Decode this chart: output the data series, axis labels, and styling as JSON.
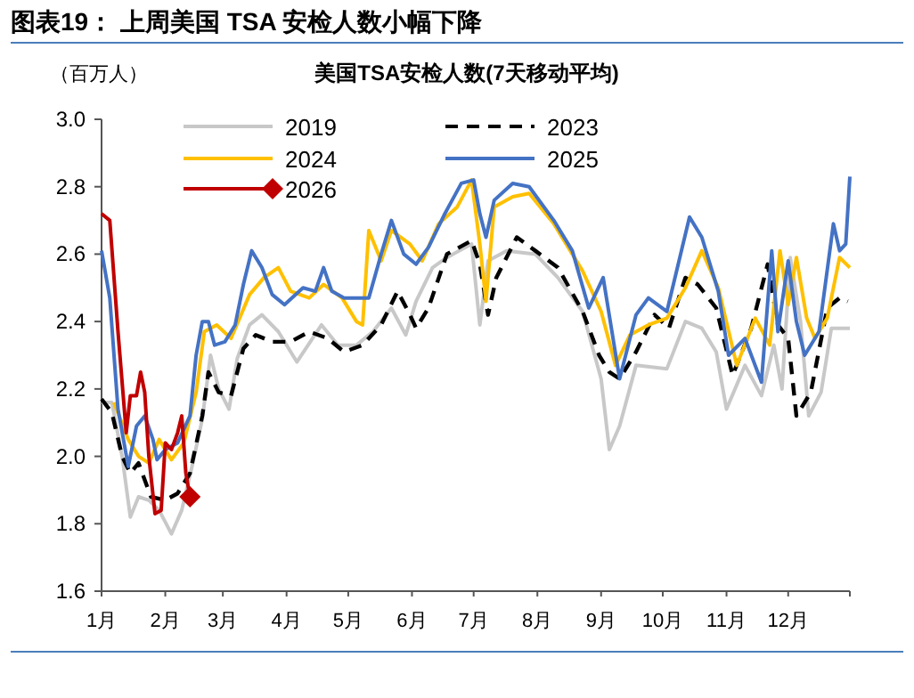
{
  "chart_data": {
    "type": "line",
    "title": "图表19：  上周美国 TSA 安检人数小幅下降",
    "subtitle": "美国TSA安检人数(7天移动平均)",
    "ylabel": "（百万人）",
    "xlim": [
      "--01-01",
      "--12-31"
    ],
    "xticks": [
      {
        "value": "--01-01",
        "label": "1月"
      },
      {
        "value": "--02-01",
        "label": "2月"
      },
      {
        "value": "--03-01",
        "label": "3月"
      },
      {
        "value": "--04-01",
        "label": "4月"
      },
      {
        "value": "--05-01",
        "label": "5月"
      },
      {
        "value": "--06-01",
        "label": "6月"
      },
      {
        "value": "--07-01",
        "label": "7月"
      },
      {
        "value": "--08-01",
        "label": "8月"
      },
      {
        "value": "--09-01",
        "label": "9月"
      },
      {
        "value": "--10-01",
        "label": "10月"
      },
      {
        "value": "--11-01",
        "label": "11月"
      },
      {
        "value": "--12-01",
        "label": "12月"
      },
      {
        "value": "--12-31",
        "label": null
      }
    ],
    "ylim": [
      1.6,
      3.0
    ],
    "yticks": [
      {
        "value": 1.6,
        "label": "1.6"
      },
      {
        "value": 1.8,
        "label": "1.8"
      },
      {
        "value": 2.0,
        "label": "2.0"
      },
      {
        "value": 2.2,
        "label": "2.2"
      },
      {
        "value": 2.4,
        "label": "2.4"
      },
      {
        "value": 2.6,
        "label": "2.6"
      },
      {
        "value": 2.8,
        "label": "2.8"
      },
      {
        "value": 3.0,
        "label": "3.0"
      }
    ],
    "grid": false,
    "legend": "top",
    "series": [
      {
        "name": "2019",
        "color": "#c8c8c8",
        "line_style": "solid",
        "x": [
          "--01-01",
          "--01-06",
          "--01-11",
          "--01-15",
          "--01-19",
          "--01-24",
          "--01-29",
          "--02-04",
          "--02-09",
          "--02-14",
          "--02-19",
          "--02-23",
          "--02-27",
          "--03-04",
          "--03-08",
          "--03-14",
          "--03-20",
          "--03-28",
          "--04-06",
          "--04-18",
          "--04-26",
          "--05-05",
          "--05-13",
          "--05-22",
          "--05-29",
          "--06-03",
          "--06-11",
          "--06-18",
          "--06-30",
          "--07-04",
          "--07-08",
          "--07-17",
          "--07-31",
          "--08-11",
          "--08-23",
          "--09-01",
          "--09-05",
          "--09-10",
          "--09-18",
          "--10-03",
          "--10-12",
          "--10-20",
          "--10-27",
          "--11-01",
          "--11-10",
          "--11-18",
          "--11-24",
          "--11-28",
          "--12-02",
          "--12-07",
          "--12-11",
          "--12-17",
          "--12-22",
          "--12-31"
        ],
        "values": [
          2.16,
          2.16,
          2.0,
          1.82,
          1.88,
          1.87,
          1.84,
          1.77,
          1.84,
          1.97,
          2.11,
          2.3,
          2.2,
          2.14,
          2.29,
          2.39,
          2.42,
          2.37,
          2.28,
          2.39,
          2.33,
          2.33,
          2.37,
          2.44,
          2.36,
          2.46,
          2.56,
          2.59,
          2.63,
          2.39,
          2.58,
          2.61,
          2.6,
          2.53,
          2.43,
          2.23,
          2.02,
          2.09,
          2.27,
          2.26,
          2.4,
          2.38,
          2.31,
          2.14,
          2.27,
          2.18,
          2.33,
          2.2,
          2.59,
          2.4,
          2.12,
          2.19,
          2.38,
          2.38
        ]
      },
      {
        "name": "2023",
        "color": "#000000",
        "line_style": "dashed",
        "x": [
          "--01-01",
          "--01-06",
          "--01-11",
          "--01-15",
          "--01-19",
          "--01-25",
          "--02-01",
          "--02-07",
          "--02-13",
          "--02-19",
          "--02-22",
          "--02-27",
          "--03-05",
          "--03-11",
          "--03-17",
          "--03-25",
          "--04-03",
          "--04-12",
          "--04-21",
          "--04-29",
          "--05-08",
          "--05-17",
          "--05-25",
          "--05-31",
          "--06-03",
          "--06-09",
          "--06-18",
          "--06-30",
          "--07-04",
          "--07-08",
          "--07-12",
          "--07-22",
          "--07-31",
          "--08-11",
          "--08-23",
          "--08-31",
          "--09-05",
          "--09-10",
          "--09-18",
          "--09-27",
          "--10-04",
          "--10-12",
          "--10-18",
          "--10-27",
          "--11-04",
          "--11-13",
          "--11-21",
          "--11-26",
          "--12-01",
          "--12-05",
          "--12-12",
          "--12-20",
          "--12-26",
          "--12-30"
        ],
        "values": [
          2.17,
          2.13,
          2.0,
          1.95,
          1.98,
          1.88,
          1.87,
          1.89,
          1.95,
          2.12,
          2.25,
          2.19,
          2.18,
          2.32,
          2.36,
          2.34,
          2.34,
          2.37,
          2.35,
          2.31,
          2.33,
          2.39,
          2.49,
          2.42,
          2.38,
          2.44,
          2.6,
          2.64,
          2.57,
          2.42,
          2.53,
          2.65,
          2.61,
          2.56,
          2.43,
          2.3,
          2.25,
          2.23,
          2.31,
          2.42,
          2.38,
          2.53,
          2.51,
          2.44,
          2.24,
          2.38,
          2.57,
          2.39,
          2.35,
          2.12,
          2.19,
          2.44,
          2.47,
          2.46
        ]
      },
      {
        "name": "2024",
        "color": "#ffc000",
        "line_style": "solid",
        "x": [
          "--01-07",
          "--01-14",
          "--01-19",
          "--01-24",
          "--01-29",
          "--02-04",
          "--02-10",
          "--02-16",
          "--02-20",
          "--02-26",
          "--03-05",
          "--03-14",
          "--03-21",
          "--03-28",
          "--04-03",
          "--04-12",
          "--04-19",
          "--04-28",
          "--05-05",
          "--05-08",
          "--05-11",
          "--05-17",
          "--05-22",
          "--05-31",
          "--06-06",
          "--06-14",
          "--06-23",
          "--06-30",
          "--07-04",
          "--07-07",
          "--07-11",
          "--07-20",
          "--07-28",
          "--08-09",
          "--08-23",
          "--09-01",
          "--09-08",
          "--09-15",
          "--09-24",
          "--10-03",
          "--10-12",
          "--10-20",
          "--10-28",
          "--11-06",
          "--11-15",
          "--11-22",
          "--11-27",
          "--12-01",
          "--12-05",
          "--12-10",
          "--12-14",
          "--12-20",
          "--12-26",
          "--12-31"
        ],
        "values": [
          2.16,
          2.05,
          2.0,
          1.98,
          2.05,
          1.99,
          2.04,
          2.19,
          2.37,
          2.39,
          2.35,
          2.48,
          2.53,
          2.56,
          2.49,
          2.47,
          2.51,
          2.47,
          2.4,
          2.39,
          2.67,
          2.58,
          2.67,
          2.63,
          2.58,
          2.69,
          2.74,
          2.82,
          2.63,
          2.46,
          2.74,
          2.77,
          2.78,
          2.69,
          2.55,
          2.43,
          2.27,
          2.36,
          2.39,
          2.41,
          2.5,
          2.61,
          2.5,
          2.27,
          2.41,
          2.33,
          2.61,
          2.45,
          2.59,
          2.41,
          2.35,
          2.41,
          2.59,
          2.56
        ]
      },
      {
        "name": "2025",
        "color": "#4472c4",
        "line_style": "solid",
        "x": [
          "--01-01",
          "--01-05",
          "--01-09",
          "--01-14",
          "--01-18",
          "--01-22",
          "--01-26",
          "--01-28",
          "--02-01",
          "--02-07",
          "--02-13",
          "--02-16",
          "--02-19",
          "--02-22",
          "--02-25",
          "--03-02",
          "--03-07",
          "--03-11",
          "--03-15",
          "--03-20",
          "--03-25",
          "--03-31",
          "--04-09",
          "--04-15",
          "--04-19",
          "--04-23",
          "--04-29",
          "--05-05",
          "--05-11",
          "--05-17",
          "--05-22",
          "--05-28",
          "--06-03",
          "--06-09",
          "--06-17",
          "--06-25",
          "--07-01",
          "--07-04",
          "--07-07",
          "--07-11",
          "--07-20",
          "--07-28",
          "--08-09",
          "--08-18",
          "--08-26",
          "--09-02",
          "--09-10",
          "--09-18",
          "--09-24",
          "--10-03",
          "--10-14",
          "--10-20",
          "--10-28",
          "--11-02",
          "--11-10",
          "--11-18",
          "--11-23",
          "--11-26",
          "--12-01",
          "--12-05",
          "--12-09",
          "--12-16",
          "--12-23",
          "--12-26",
          "--12-29",
          "--12-31"
        ],
        "values": [
          2.61,
          2.47,
          2.14,
          1.97,
          2.09,
          2.12,
          2.05,
          1.99,
          2.02,
          2.04,
          2.12,
          2.3,
          2.4,
          2.4,
          2.33,
          2.34,
          2.39,
          2.51,
          2.61,
          2.56,
          2.48,
          2.45,
          2.5,
          2.49,
          2.56,
          2.49,
          2.47,
          2.47,
          2.47,
          2.6,
          2.7,
          2.6,
          2.57,
          2.62,
          2.72,
          2.81,
          2.82,
          2.72,
          2.65,
          2.76,
          2.81,
          2.8,
          2.7,
          2.61,
          2.44,
          2.53,
          2.23,
          2.42,
          2.47,
          2.43,
          2.71,
          2.65,
          2.49,
          2.3,
          2.35,
          2.22,
          2.61,
          2.37,
          2.58,
          2.4,
          2.3,
          2.37,
          2.69,
          2.61,
          2.63,
          2.83
        ]
      },
      {
        "name": "2026",
        "color": "#c00000",
        "line_style": "solid",
        "x": [
          "--01-01",
          "--01-05",
          "--01-09",
          "--01-13",
          "--01-15",
          "--01-18",
          "--01-20",
          "--01-22",
          "--01-24",
          "--01-27",
          "--01-30",
          "--02-01",
          "--02-04",
          "--02-07",
          "--02-09",
          "--02-11",
          "--02-13"
        ],
        "values": [
          2.72,
          2.7,
          2.37,
          2.07,
          2.18,
          2.18,
          2.25,
          2.19,
          2.0,
          1.83,
          1.84,
          2.04,
          2.02,
          2.07,
          2.12,
          1.95,
          1.88
        ]
      },
      {
        "type": "scatter",
        "color": "#c00000",
        "marker": "diamond",
        "x": [
          "--02-13"
        ],
        "values": [
          1.88
        ]
      }
    ]
  }
}
